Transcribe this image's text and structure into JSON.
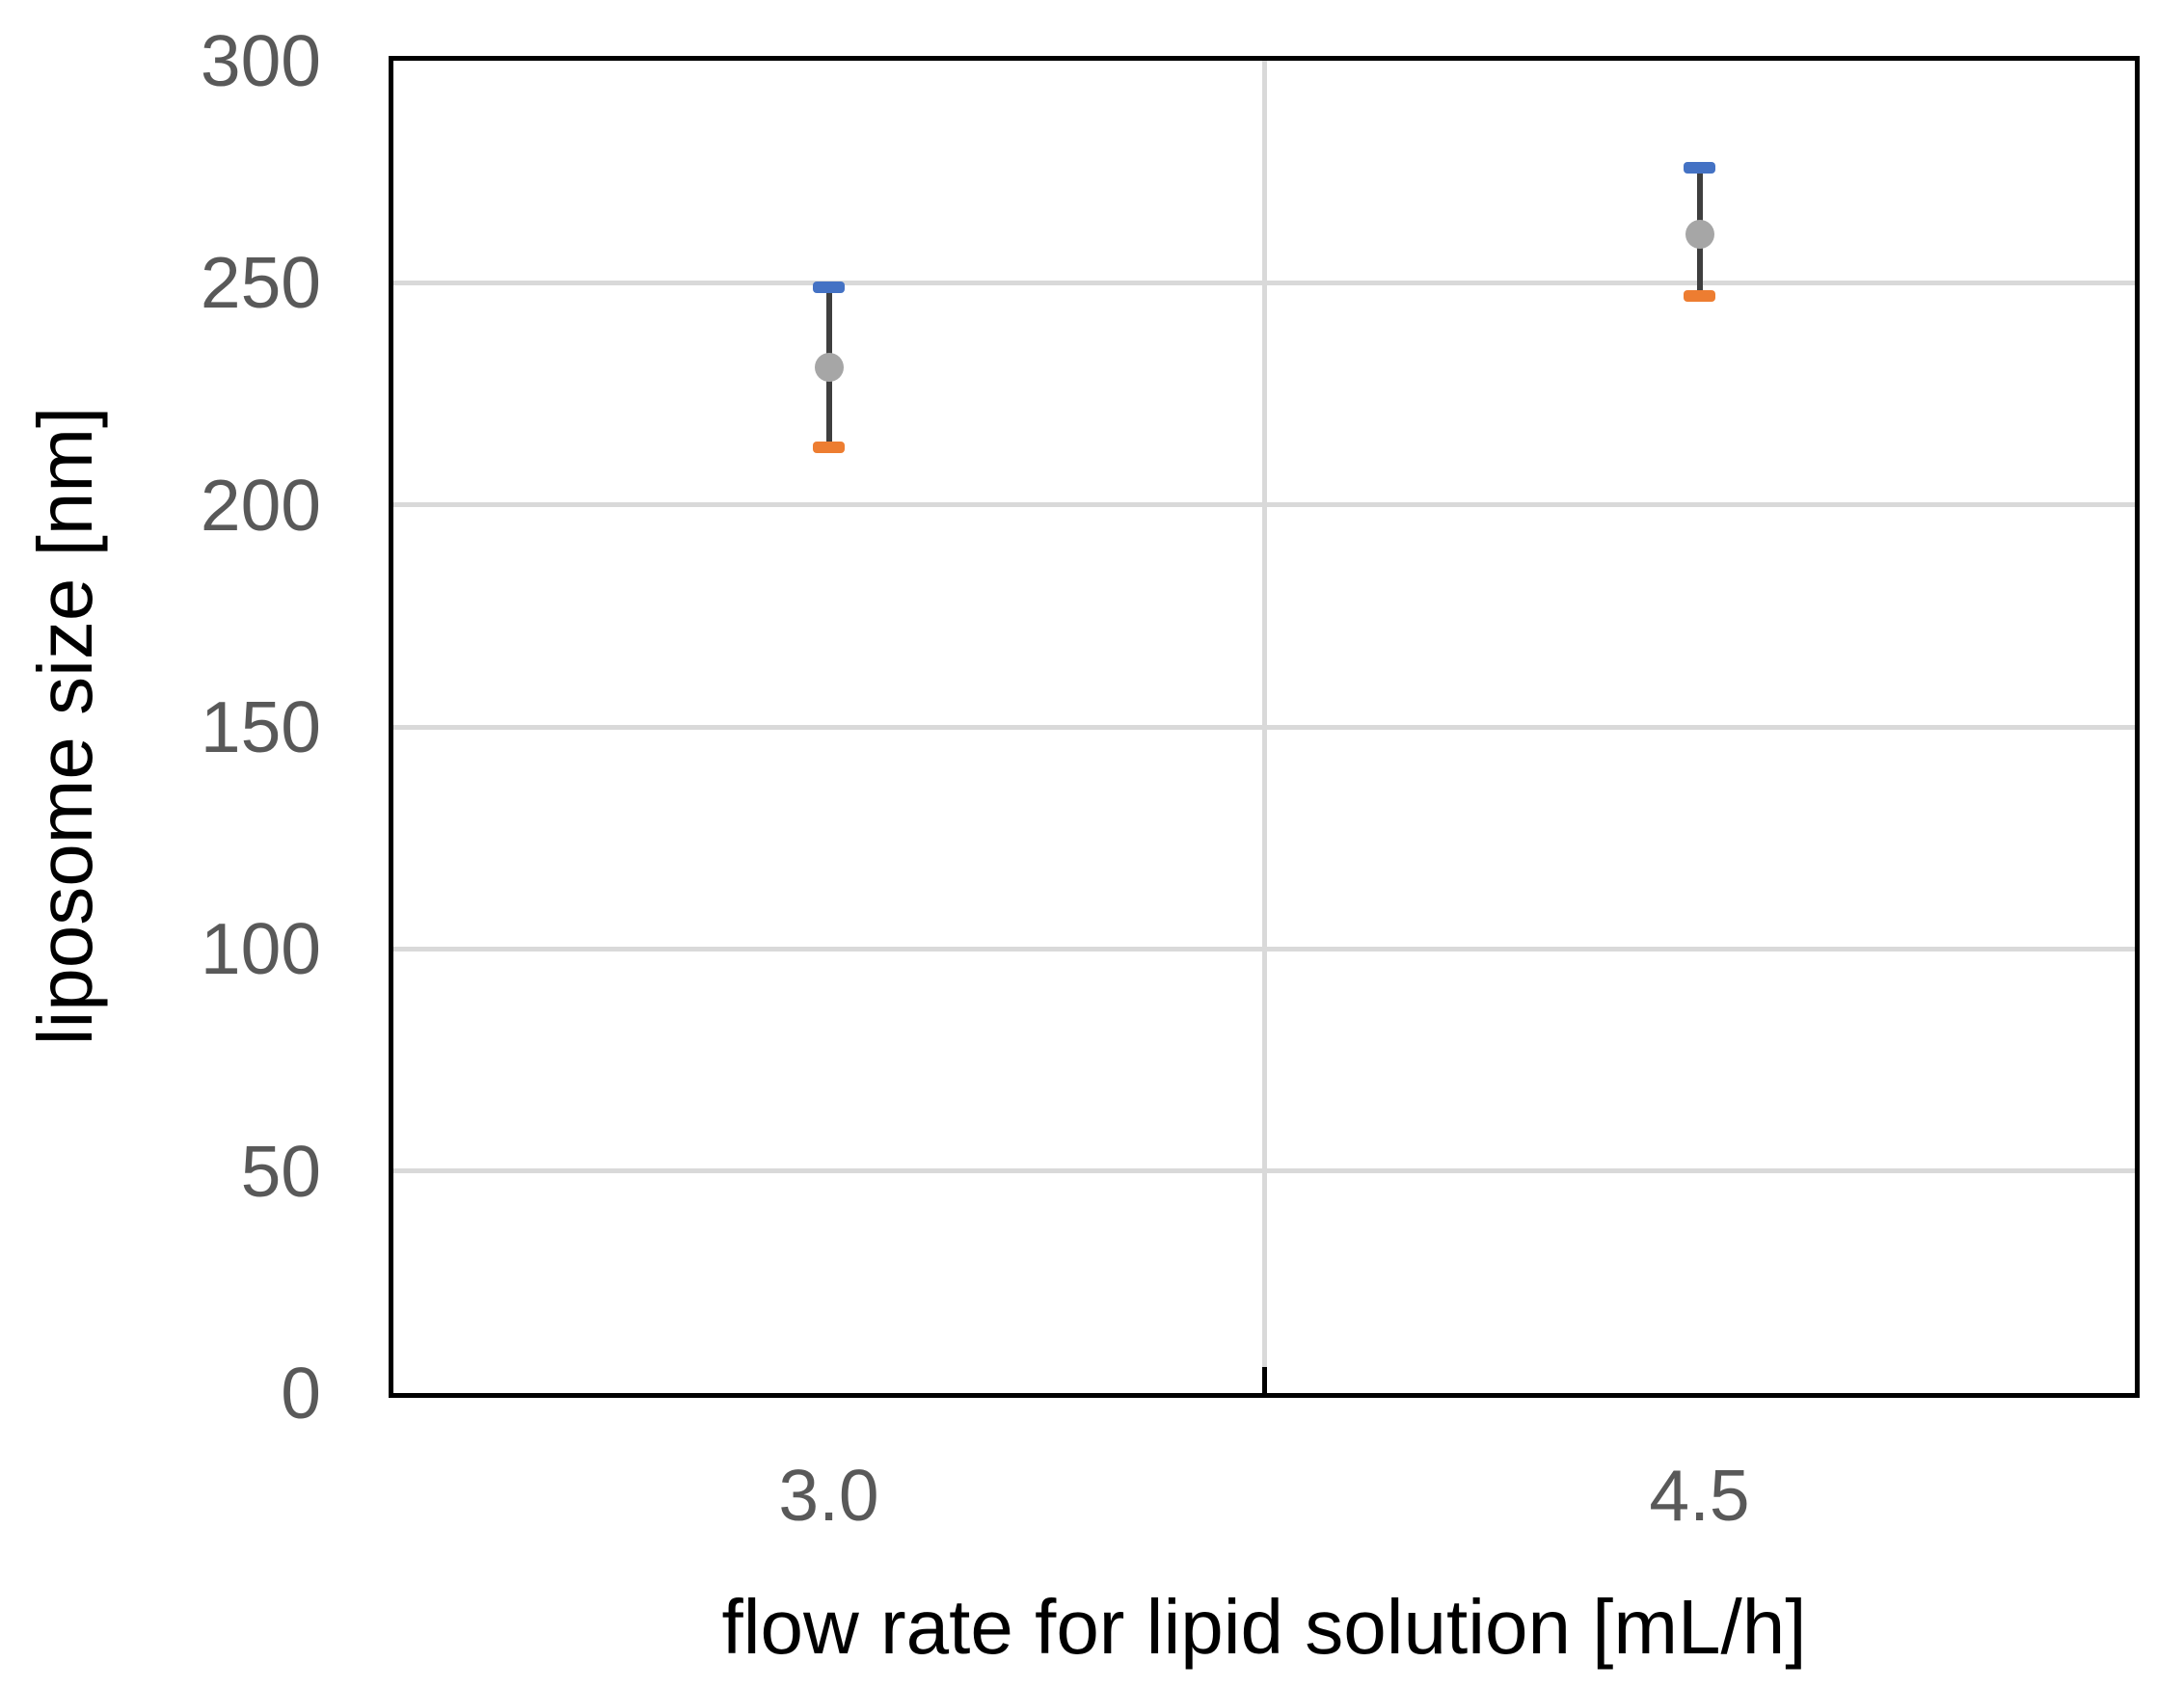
{
  "chart_data": {
    "type": "scatter",
    "title": "",
    "xlabel": "flow rate for lipid solution [mL/h]",
    "ylabel": "liposome size [nm]",
    "categories": [
      "3.0",
      "4.5"
    ],
    "series": [
      {
        "name": "liposome size",
        "points": [
          {
            "category": "3.0",
            "mean": 231,
            "error_upper": 249,
            "error_lower": 213
          },
          {
            "category": "4.5",
            "mean": 261,
            "error_upper": 276,
            "error_lower": 247
          }
        ]
      }
    ],
    "ylim": [
      0,
      300
    ],
    "yticks": [
      0,
      50,
      100,
      150,
      200,
      250,
      300
    ],
    "grid": "horizontal gridlines at each y tick; one vertical category-separator line; inward tick mark at category boundary on x axis",
    "legend_position": "none",
    "colors": {
      "mean_marker": "#A6A6A6",
      "upper_error_cap": "#4472C4",
      "lower_error_cap": "#ED7D31",
      "error_bar_line": "#3F3F3F",
      "gridline": "#D9D9D9",
      "axis_border": "#000000",
      "tick_label": "#595959",
      "axis_title": "#000000",
      "background": "#FFFFFF"
    }
  }
}
